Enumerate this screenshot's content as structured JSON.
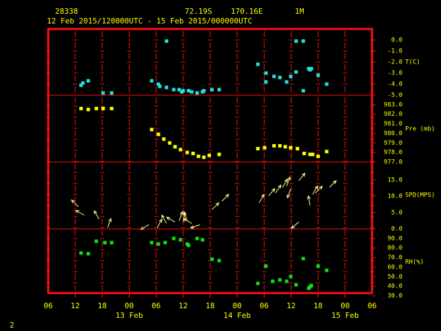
{
  "header": {
    "station": "28338",
    "lat": "72.19S",
    "lon": "170.16E",
    "level": "1M",
    "period": "12 Feb 2015/120000UTC - 15 Feb 2015/000000UTC"
  },
  "footer": "2",
  "chart_data": [
    {
      "type": "scatter",
      "label": "T(C)",
      "color": "#20e0e0",
      "xlim": [
        0,
        72
      ],
      "ylim": [
        -5,
        1
      ],
      "yticks": [
        {
          "value": 0,
          "label": "0.0"
        },
        {
          "value": -1,
          "label": "-1.0"
        },
        {
          "value": -2,
          "label": "-2.0"
        },
        {
          "value": -3,
          "label": "-3.0"
        },
        {
          "value": -4,
          "label": "-4.0"
        },
        {
          "value": -5,
          "label": "-5.0"
        }
      ],
      "x": [
        7.3,
        7.7,
        8.9,
        12.2,
        14.1,
        23,
        24.5,
        24.8,
        26.3,
        26.3,
        27.9,
        29.1,
        29.7,
        30,
        31.2,
        31.9,
        33.1,
        34.3,
        34.6,
        36.4,
        38,
        46.6,
        48.4,
        48.4,
        50.2,
        51.5,
        53,
        53.9,
        55.1,
        55.1,
        56.7,
        56.7,
        57.9,
        58.2,
        58.5,
        60,
        61.9
      ],
      "values": [
        -4.1,
        -3.9,
        -3.7,
        -4.8,
        -4.8,
        -3.7,
        -4,
        -4.2,
        -4.3,
        -0.1,
        -4.5,
        -4.5,
        -4.7,
        -4.6,
        -4.6,
        -4.7,
        -4.8,
        -4.7,
        -4.6,
        -4.5,
        -4.5,
        -2.2,
        -3,
        -3.8,
        -3.3,
        -3.4,
        -3.8,
        -3.3,
        -2.9,
        -0.1,
        -0.1,
        -4.6,
        -2.6,
        -2.7,
        -2.6,
        -3.2,
        -4
      ]
    },
    {
      "type": "scatter",
      "label": "Pre (mb)",
      "color": "#ffff00",
      "xlim": [
        0,
        72
      ],
      "ylim": [
        977,
        984
      ],
      "yticks": [
        {
          "value": 983,
          "label": "983.0"
        },
        {
          "value": 982,
          "label": "982.0"
        },
        {
          "value": 981,
          "label": "981.0"
        },
        {
          "value": 980,
          "label": "980.0"
        },
        {
          "value": 979,
          "label": "979.0"
        },
        {
          "value": 978,
          "label": "978.0"
        },
        {
          "value": 977,
          "label": "977.0"
        }
      ],
      "x": [
        7.3,
        8.9,
        10.7,
        12.2,
        14.1,
        23,
        24.5,
        25.7,
        27,
        28.2,
        29.4,
        30.9,
        32.2,
        33.4,
        34.6,
        35.8,
        38,
        46.6,
        48.1,
        50.2,
        51.5,
        52.7,
        53.9,
        55.4,
        56.9,
        58.2,
        58.8,
        60,
        61.9
      ],
      "values": [
        982.6,
        982.5,
        982.6,
        982.6,
        982.6,
        980.4,
        979.9,
        979.4,
        979,
        978.6,
        978.3,
        978,
        977.9,
        977.6,
        977.5,
        977.7,
        977.8,
        978.4,
        978.5,
        978.7,
        978.7,
        978.6,
        978.5,
        978.4,
        977.9,
        977.8,
        977.8,
        977.6,
        978.1
      ]
    },
    {
      "type": "wind",
      "label": "SPD(MPS)",
      "color": "#ffff90",
      "xlim": [
        0,
        72
      ],
      "ylim": [
        0,
        20.5
      ],
      "yticks": [
        {
          "value": 15,
          "label": "15.0"
        },
        {
          "value": 10,
          "label": "10.0"
        },
        {
          "value": 5,
          "label": "5.0"
        },
        {
          "value": 0,
          "label": "0.0"
        }
      ],
      "x": [
        6.7,
        8,
        11.3,
        13.2,
        22.4,
        24.2,
        26.3,
        28.2,
        29.1,
        30,
        30.9,
        31.9,
        33.7,
        36.4,
        38.6,
        46.9,
        49,
        50.5,
        52.1,
        53,
        53.9,
        55.7,
        55.7,
        58.2,
        58.8,
        59.4,
        62.5
      ],
      "values": [
        6.8,
        4.2,
        3,
        0.4,
        1.3,
        0.4,
        1.7,
        2.1,
        2.5,
        2.1,
        2.5,
        1.7,
        1.3,
        5.9,
        8.5,
        8,
        10.1,
        11,
        12.7,
        13.1,
        12.3,
        14.8,
        2.1,
        7.2,
        10.6,
        11,
        12.7
      ],
      "directions": [
        315,
        300,
        330,
        20,
        240,
        30,
        330,
        300,
        20,
        10,
        340,
        300,
        250,
        45,
        45,
        30,
        40,
        35,
        30,
        20,
        200,
        40,
        230,
        350,
        30,
        45,
        45
      ]
    },
    {
      "type": "scatter",
      "label": "RH(%)",
      "color": "#10e010",
      "xlim": [
        0,
        72
      ],
      "ylim": [
        30,
        100
      ],
      "yticks": [
        {
          "value": 90,
          "label": "90.0"
        },
        {
          "value": 80,
          "label": "80.0"
        },
        {
          "value": 70,
          "label": "70.0"
        },
        {
          "value": 60,
          "label": "60.0"
        },
        {
          "value": 50,
          "label": "50.0"
        },
        {
          "value": 40,
          "label": "40.0"
        },
        {
          "value": 30,
          "label": "30.0"
        }
      ],
      "x": [
        7.3,
        8.9,
        10.7,
        12.6,
        14.1,
        23,
        24.5,
        26,
        27.9,
        29.4,
        30.9,
        31.2,
        33.1,
        34.3,
        36.4,
        38,
        46.6,
        48.4,
        49.9,
        51.5,
        53,
        53.9,
        55.1,
        56.7,
        57.9,
        58.2,
        58.5,
        60,
        61.9
      ],
      "values": [
        74.8,
        74.1,
        87.1,
        85.7,
        85.7,
        85.7,
        84.2,
        85.7,
        90,
        88.6,
        84.2,
        82.8,
        90,
        88.6,
        68.3,
        66.9,
        43,
        61.1,
        45.2,
        46.6,
        45.2,
        50.2,
        41.6,
        69,
        37.9,
        39.4,
        40.8,
        61.1,
        56.7
      ],
      "xticks": [
        {
          "value": 0,
          "label": "06"
        },
        {
          "value": 6,
          "label": "12"
        },
        {
          "value": 12,
          "label": "18"
        },
        {
          "value": 18,
          "label": "00"
        },
        {
          "value": 24,
          "label": "06"
        },
        {
          "value": 30,
          "label": "12"
        },
        {
          "value": 36,
          "label": "18"
        },
        {
          "value": 42,
          "label": "00"
        },
        {
          "value": 48,
          "label": "06"
        },
        {
          "value": 54,
          "label": "12"
        },
        {
          "value": 60,
          "label": "18"
        },
        {
          "value": 66,
          "label": "00"
        },
        {
          "value": 72,
          "label": "06"
        }
      ],
      "date_labels": [
        {
          "value": 18,
          "label": "13 Feb"
        },
        {
          "value": 42,
          "label": "14 Feb"
        },
        {
          "value": 66,
          "label": "15 Feb"
        }
      ]
    }
  ]
}
